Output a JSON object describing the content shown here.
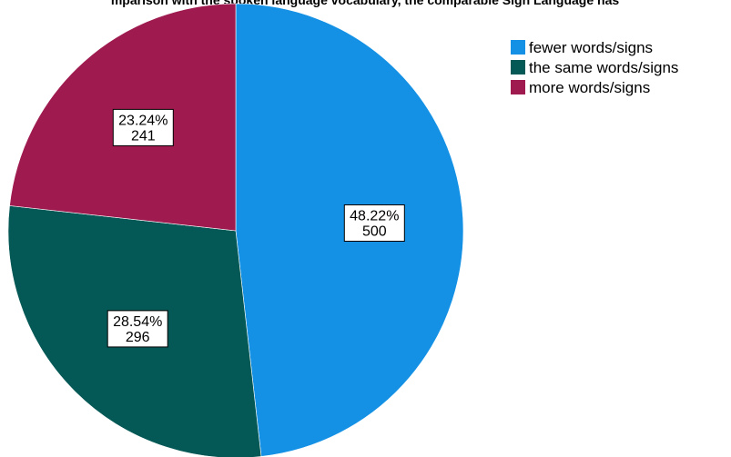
{
  "chart_data": {
    "type": "pie",
    "title": "mparison with the spoken language vocabulary, the comparable Sign Language has",
    "categories": [
      "fewer words/signs",
      "the same words/signs",
      "more words/signs"
    ],
    "values": [
      500,
      296,
      241
    ],
    "percent_labels": [
      "48.22%",
      "28.54%",
      "23.24%"
    ],
    "count_labels": [
      "500",
      "296",
      "241"
    ],
    "colors": [
      "#1491e5",
      "#045855",
      "#9e1a4f"
    ],
    "start_angle_deg": 0,
    "direction": "clockwise",
    "legend_position": "top-right"
  }
}
